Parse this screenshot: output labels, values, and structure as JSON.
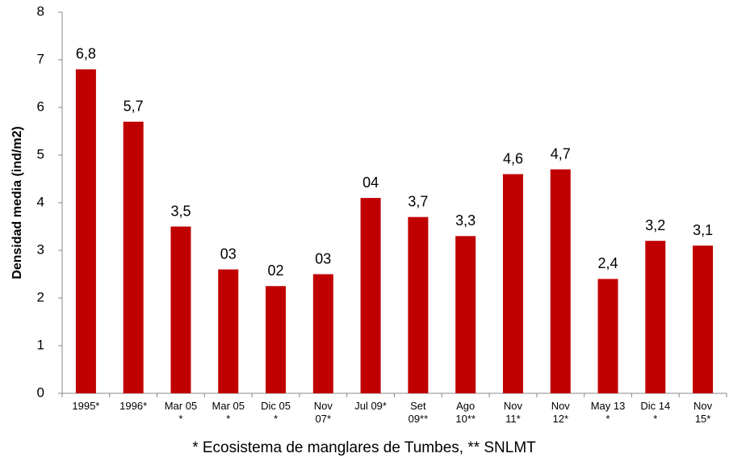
{
  "chart_data": {
    "type": "bar",
    "y_label": "Densidad media (ind/m2)",
    "footnote": "* Ecosistema de manglares de Tumbes, ** SNLMT",
    "categories": [
      "1995*",
      "1996*",
      "Mar 05\n*",
      "Mar 05\n*",
      "Dic 05\n*",
      "Nov\n07*",
      "Jul 09*",
      "Set\n09**",
      "Ago\n10**",
      "Nov\n11*",
      "Nov\n12*",
      "May 13\n*",
      "Dic 14\n*",
      "Nov\n15*"
    ],
    "values": [
      6.8,
      5.7,
      3.5,
      2.6,
      2.25,
      2.5,
      4.1,
      3.7,
      3.3,
      4.6,
      4.7,
      2.4,
      3.2,
      3.1
    ],
    "value_labels": [
      "6,8",
      "5,7",
      "3,5",
      "03",
      "02",
      "03",
      "04",
      "3,7",
      "3,3",
      "4,6",
      "4,7",
      "2,4",
      "3,2",
      "3,1"
    ],
    "color": "#c00000",
    "ylim": [
      0,
      8
    ],
    "yticks": [
      0,
      1,
      2,
      3,
      4,
      5,
      6,
      7,
      8
    ],
    "grid": false
  }
}
